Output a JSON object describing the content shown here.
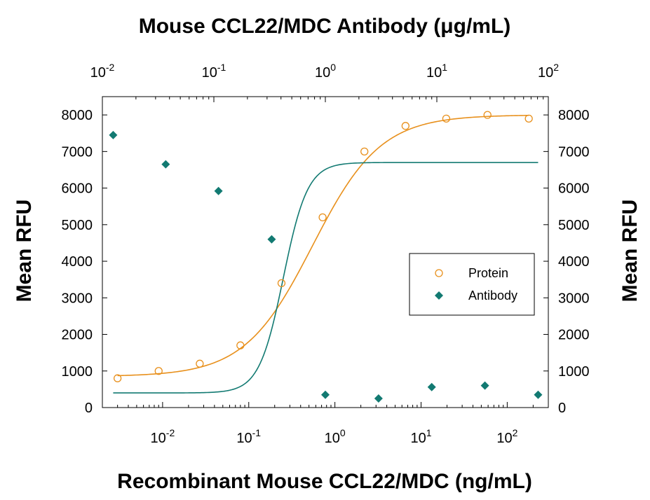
{
  "chart_data": {
    "type": "scatter",
    "title": "Mouse CCL22/MDC Antibody (μg/mL)",
    "xlabel": "Recombinant Mouse CCL22/MDC (ng/mL)",
    "ylabel_left": "Mean RFU",
    "ylabel_right": "Mean RFU",
    "x_scale": "log",
    "bottom_xlim": [
      0.002,
      300
    ],
    "top_xlim": [
      0.01,
      100
    ],
    "ylim": [
      0,
      8500
    ],
    "y_ticks": [
      0,
      1000,
      2000,
      3000,
      4000,
      5000,
      6000,
      7000,
      8000
    ],
    "bottom_ticks": [
      {
        "value": 0.01,
        "base": "10",
        "exp": "-2"
      },
      {
        "value": 0.1,
        "base": "10",
        "exp": "-1"
      },
      {
        "value": 1,
        "base": "10",
        "exp": "0"
      },
      {
        "value": 10,
        "base": "10",
        "exp": "1"
      },
      {
        "value": 100,
        "base": "10",
        "exp": "2"
      }
    ],
    "top_ticks": [
      {
        "value": 0.01,
        "base": "10",
        "exp": "-2"
      },
      {
        "value": 0.1,
        "base": "10",
        "exp": "-1"
      },
      {
        "value": 1,
        "base": "10",
        "exp": "0"
      },
      {
        "value": 10,
        "base": "10",
        "exp": "1"
      },
      {
        "value": 100,
        "base": "10",
        "exp": "2"
      }
    ],
    "legend_position": "center-right",
    "grid": false,
    "series": [
      {
        "name": "Protein",
        "axis": "bottom",
        "marker": "open-circle",
        "color": "#e8901c",
        "x": [
          0.003,
          0.009,
          0.027,
          0.08,
          0.24,
          0.72,
          2.2,
          6.6,
          19.6,
          59,
          178
        ],
        "y": [
          800,
          1000,
          1200,
          1700,
          3400,
          5200,
          7000,
          7700,
          7900,
          8000,
          7900
        ],
        "fit": {
          "bottom": 850,
          "top": 8000,
          "ec50": 0.55,
          "hill": 1.1,
          "x_range": [
            0.003,
            178
          ]
        }
      },
      {
        "name": "Antibody",
        "axis": "top",
        "marker": "filled-diamond",
        "color": "#127a72",
        "x": [
          0.0125,
          0.037,
          0.11,
          0.33,
          1.0,
          3.0,
          9.0,
          27,
          81
        ],
        "y": [
          7450,
          6650,
          5920,
          4600,
          350,
          250,
          560,
          600,
          350
        ],
        "fit": {
          "bottom": 400,
          "top": 6700,
          "ec50": 0.42,
          "hill": 4.0,
          "x_range": [
            0.0125,
            81
          ]
        }
      }
    ]
  }
}
